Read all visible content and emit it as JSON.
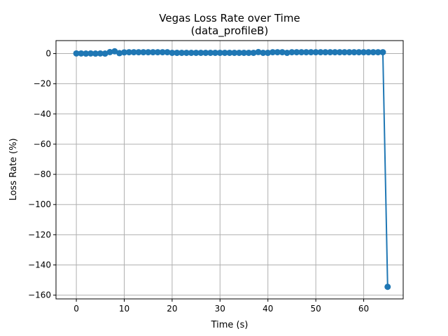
{
  "chart_data": {
    "type": "line",
    "title": "Vegas Loss Rate over Time",
    "subtitle": "(data_profileB)",
    "xlabel": "Time (s)",
    "ylabel": "Loss Rate (%)",
    "xlim": [
      -4.25,
      68.25
    ],
    "ylim": [
      -162.5,
      8.6
    ],
    "xticks": [
      0,
      10,
      20,
      30,
      40,
      50,
      60
    ],
    "yticks": [
      0,
      -20,
      -40,
      -60,
      -80,
      -100,
      -120,
      -140,
      -160
    ],
    "grid": true,
    "color": "#1f77b4",
    "series": [
      {
        "x": [
          0,
          1,
          2,
          3,
          4,
          5,
          6,
          7,
          8,
          9,
          10,
          11,
          12,
          13,
          14,
          15,
          16,
          17,
          18,
          19,
          20,
          21,
          22,
          23,
          24,
          25,
          26,
          27,
          28,
          29,
          30,
          31,
          32,
          33,
          34,
          35,
          36,
          37,
          38,
          39,
          40,
          41,
          42,
          43,
          44,
          45,
          46,
          47,
          48,
          49,
          50,
          51,
          52,
          53,
          54,
          55,
          56,
          57,
          58,
          59,
          60,
          61,
          62,
          63,
          64,
          65
        ],
        "y": [
          0.1,
          0.1,
          0.0,
          0.1,
          0.0,
          0.1,
          0.0,
          1.0,
          1.5,
          0.3,
          0.8,
          0.9,
          0.9,
          0.9,
          0.9,
          0.9,
          0.9,
          0.9,
          0.9,
          0.9,
          0.5,
          0.5,
          0.5,
          0.5,
          0.5,
          0.5,
          0.5,
          0.5,
          0.5,
          0.5,
          0.5,
          0.5,
          0.5,
          0.5,
          0.5,
          0.5,
          0.5,
          0.5,
          1.0,
          0.5,
          0.5,
          0.9,
          0.9,
          0.9,
          0.5,
          0.9,
          0.9,
          0.9,
          0.9,
          0.9,
          0.9,
          0.9,
          0.9,
          0.9,
          0.9,
          0.9,
          0.9,
          0.9,
          0.9,
          0.9,
          0.9,
          0.9,
          0.9,
          0.9,
          0.9,
          -154.5
        ]
      }
    ]
  }
}
